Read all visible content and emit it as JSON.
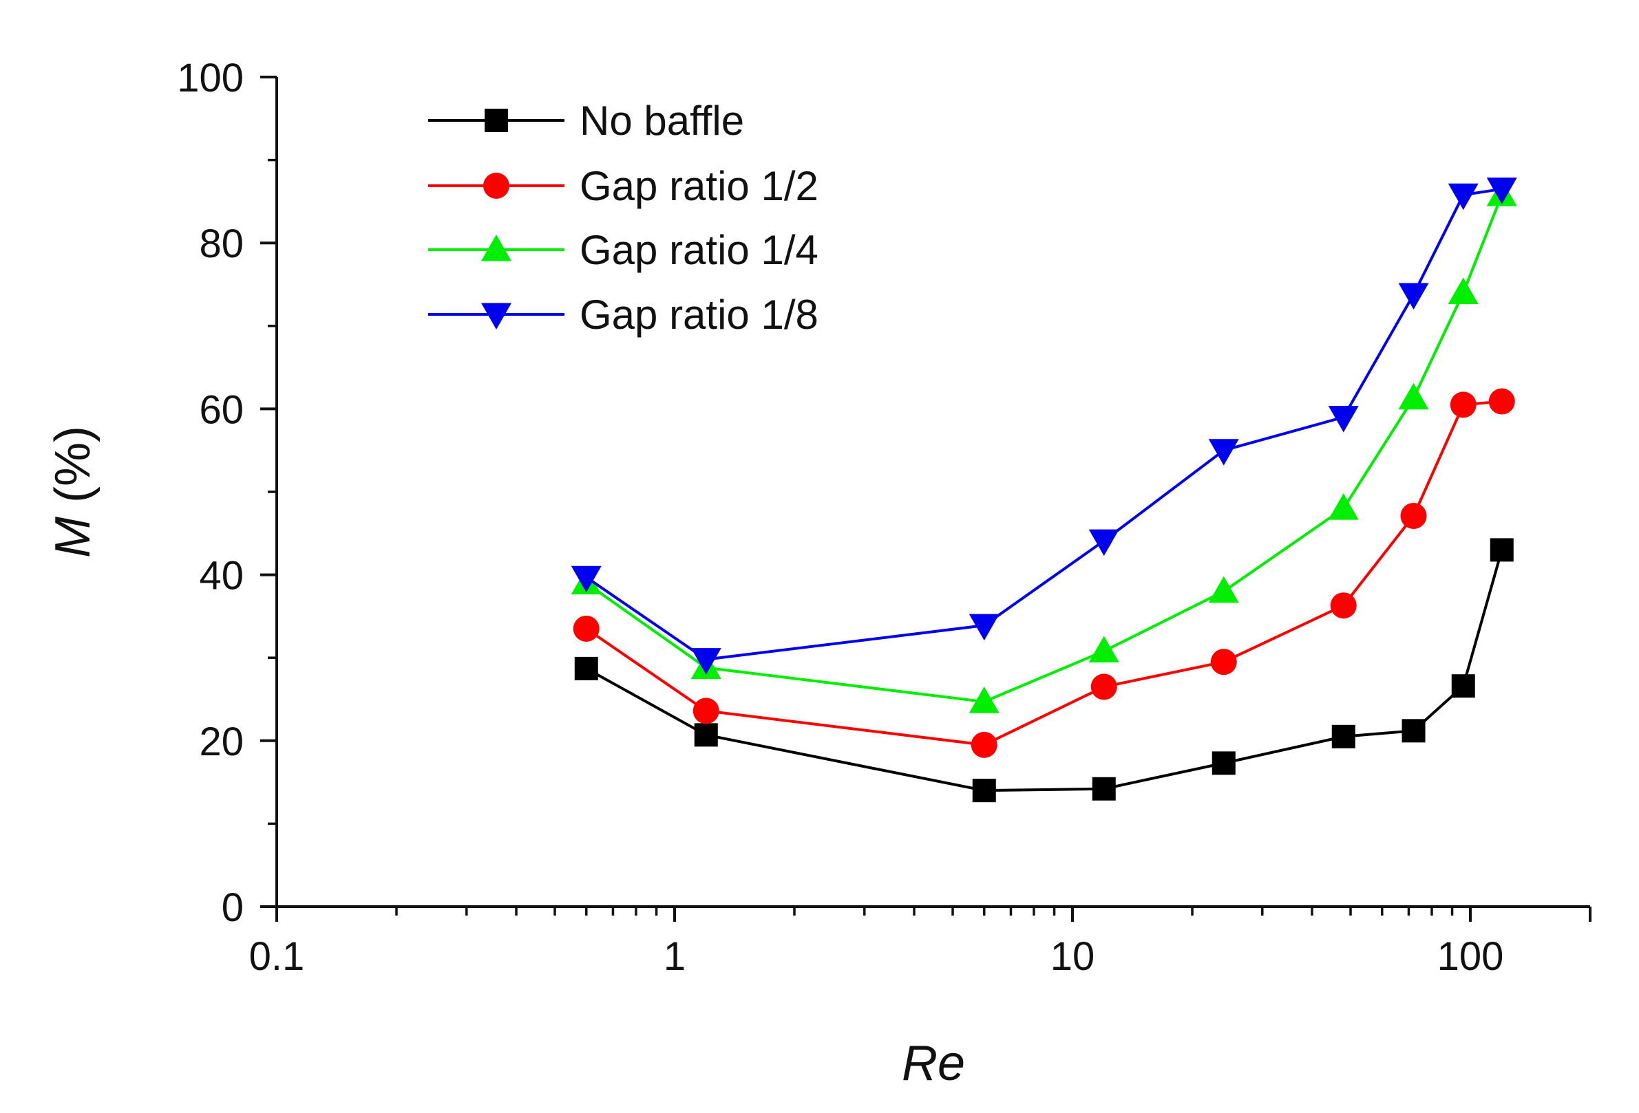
{
  "chart_data": {
    "type": "line",
    "xscale": "log",
    "xlabel": "Re",
    "ylabel_var": "M",
    "ylabel_unit": " (%)",
    "xlim": [
      0.1,
      200
    ],
    "ylim": [
      0,
      100
    ],
    "xticks": [
      {
        "value": 0.1,
        "label": "0.1"
      },
      {
        "value": 1,
        "label": "1"
      },
      {
        "value": 10,
        "label": "10"
      },
      {
        "value": 100,
        "label": "100"
      }
    ],
    "yticks": [
      {
        "value": 0,
        "label": "0"
      },
      {
        "value": 20,
        "label": "20"
      },
      {
        "value": 40,
        "label": "40"
      },
      {
        "value": 60,
        "label": "60"
      },
      {
        "value": 80,
        "label": "80"
      },
      {
        "value": 100,
        "label": "100"
      }
    ],
    "grid": false,
    "legend_position": "top-left",
    "series": [
      {
        "name": "No baffle",
        "color": "#000000",
        "marker": "square",
        "x": [
          0.6,
          1.2,
          6,
          12,
          24,
          48,
          72,
          96,
          120
        ],
        "y": [
          28.7,
          20.7,
          14.0,
          14.2,
          17.3,
          20.5,
          21.2,
          26.6,
          43.0
        ]
      },
      {
        "name": "Gap ratio 1/2",
        "color": "#ff0000",
        "marker": "circle",
        "x": [
          0.6,
          1.2,
          6,
          12,
          24,
          48,
          72,
          96,
          120
        ],
        "y": [
          33.5,
          23.6,
          19.5,
          26.5,
          29.5,
          36.3,
          47.1,
          60.5,
          60.9
        ]
      },
      {
        "name": "Gap ratio 1/4",
        "color": "#00ee00",
        "marker": "triangle-up",
        "x": [
          0.6,
          1.2,
          6,
          12,
          24,
          48,
          72,
          96,
          120
        ],
        "y": [
          39.0,
          28.8,
          24.7,
          30.8,
          38.0,
          48.0,
          61.3,
          74.0,
          85.8
        ]
      },
      {
        "name": "Gap ratio 1/8",
        "color": "#0000ee",
        "marker": "triangle-down",
        "x": [
          0.6,
          1.2,
          6,
          12,
          24,
          48,
          72,
          96,
          120
        ],
        "y": [
          39.7,
          29.8,
          33.9,
          44.1,
          55.0,
          59.0,
          73.8,
          85.8,
          86.5
        ]
      }
    ]
  }
}
